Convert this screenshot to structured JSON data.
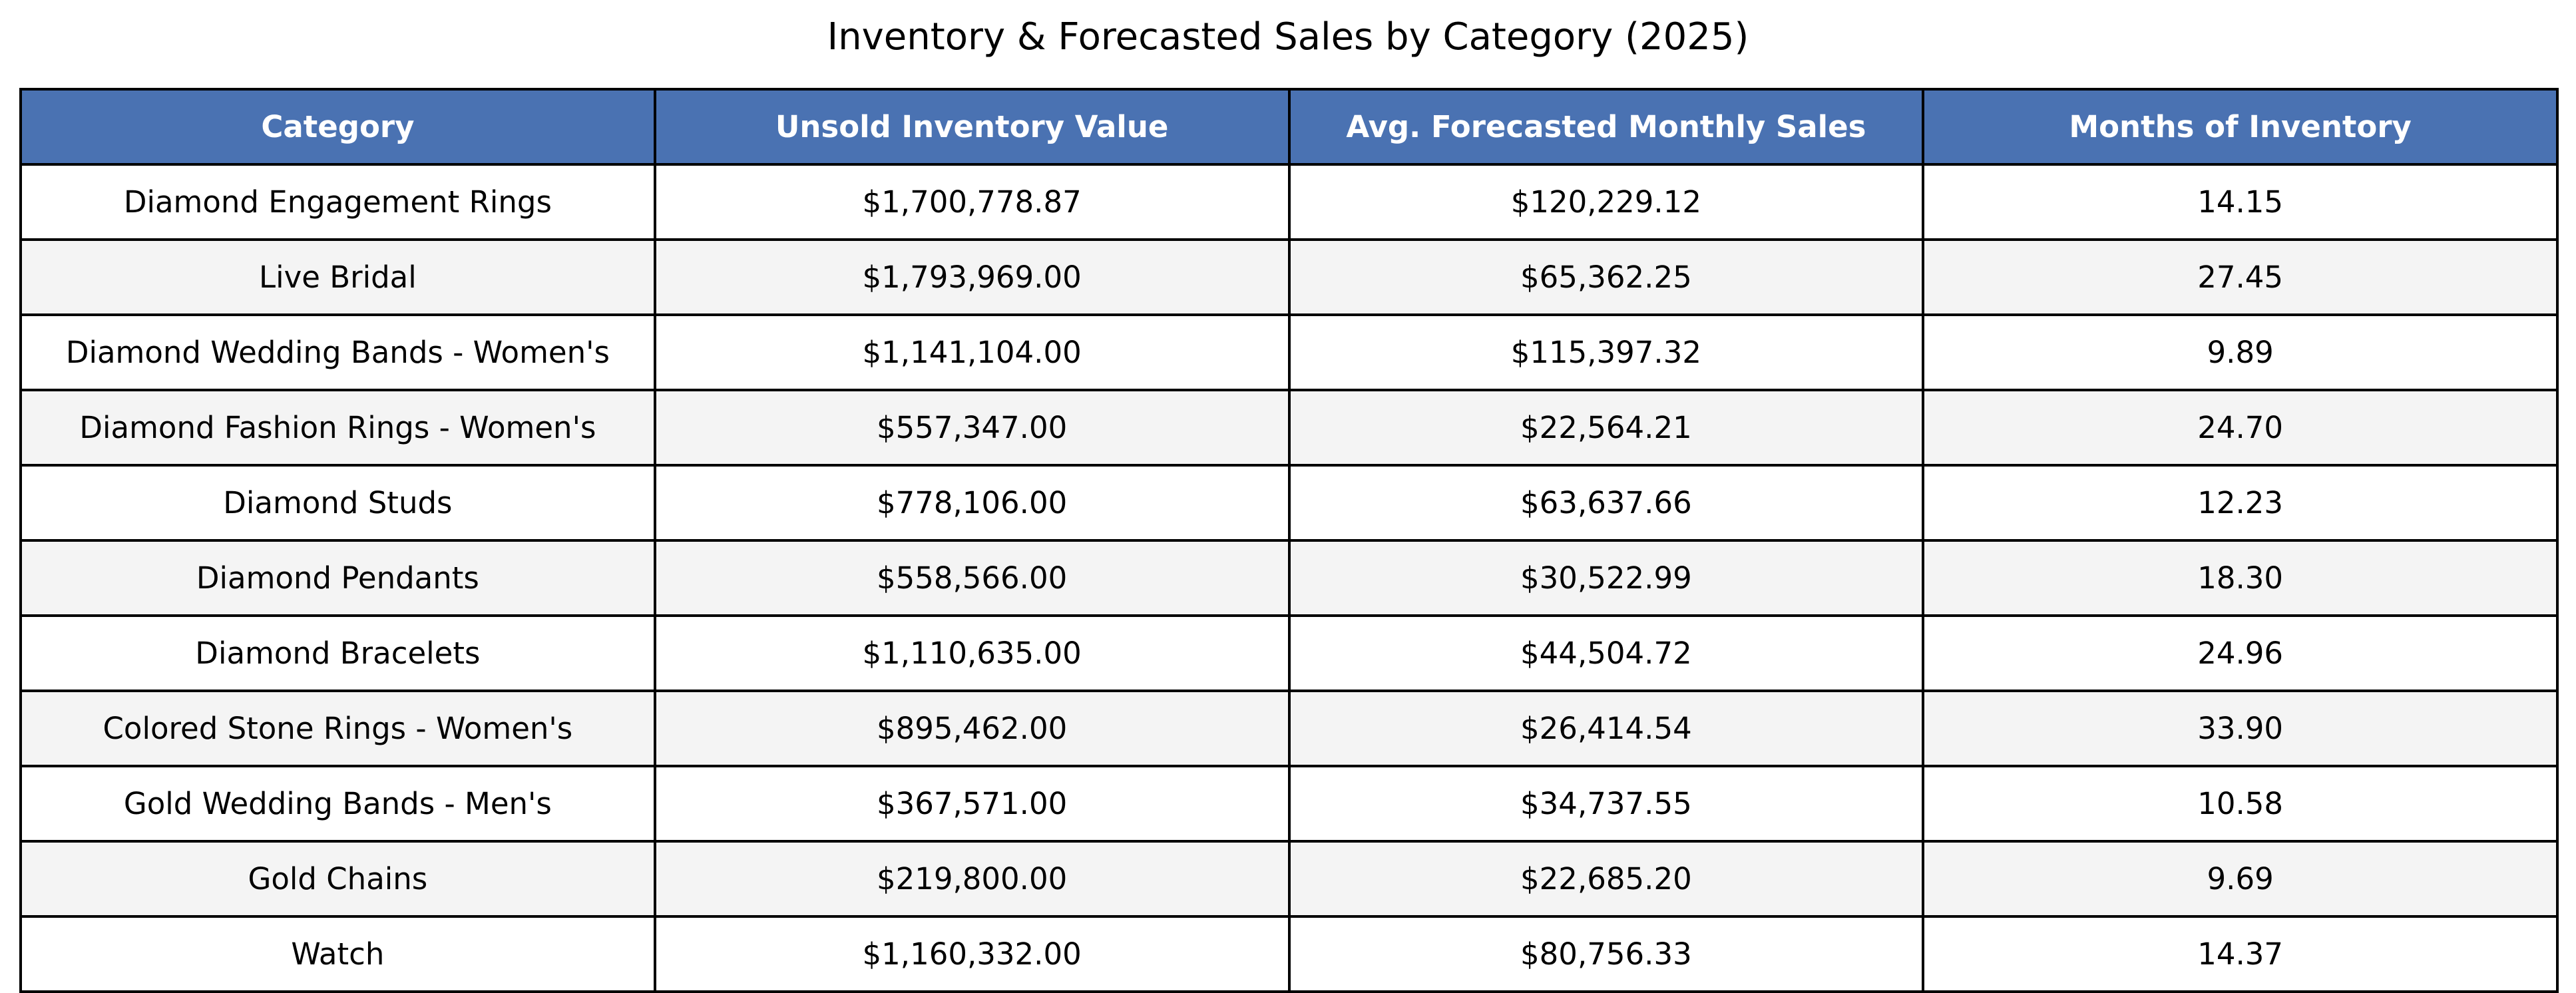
{
  "chart_data": {
    "type": "table",
    "title": "Inventory & Forecasted Sales by Category (2025)",
    "header_color": "#4a72b2",
    "stripe_color": "#f4f4f4",
    "columns": [
      "Category",
      "Unsold Inventory Value",
      "Avg. Forecasted Monthly Sales",
      "Months of Inventory"
    ],
    "rows": [
      [
        "Diamond Engagement Rings",
        "$1,700,778.87",
        "$120,229.12",
        "14.15"
      ],
      [
        "Live Bridal",
        "$1,793,969.00",
        "$65,362.25",
        "27.45"
      ],
      [
        "Diamond Wedding Bands - Women's",
        "$1,141,104.00",
        "$115,397.32",
        "9.89"
      ],
      [
        "Diamond Fashion Rings - Women's",
        "$557,347.00",
        "$22,564.21",
        "24.70"
      ],
      [
        "Diamond Studs",
        "$778,106.00",
        "$63,637.66",
        "12.23"
      ],
      [
        "Diamond Pendants",
        "$558,566.00",
        "$30,522.99",
        "18.30"
      ],
      [
        "Diamond Bracelets",
        "$1,110,635.00",
        "$44,504.72",
        "24.96"
      ],
      [
        "Colored Stone Rings - Women's",
        "$895,462.00",
        "$26,414.54",
        "33.90"
      ],
      [
        "Gold Wedding Bands - Men's",
        "$367,571.00",
        "$34,737.55",
        "10.58"
      ],
      [
        "Gold Chains",
        "$219,800.00",
        "$22,685.20",
        "9.69"
      ],
      [
        "Watch",
        "$1,160,332.00",
        "$80,756.33",
        "14.37"
      ]
    ]
  }
}
